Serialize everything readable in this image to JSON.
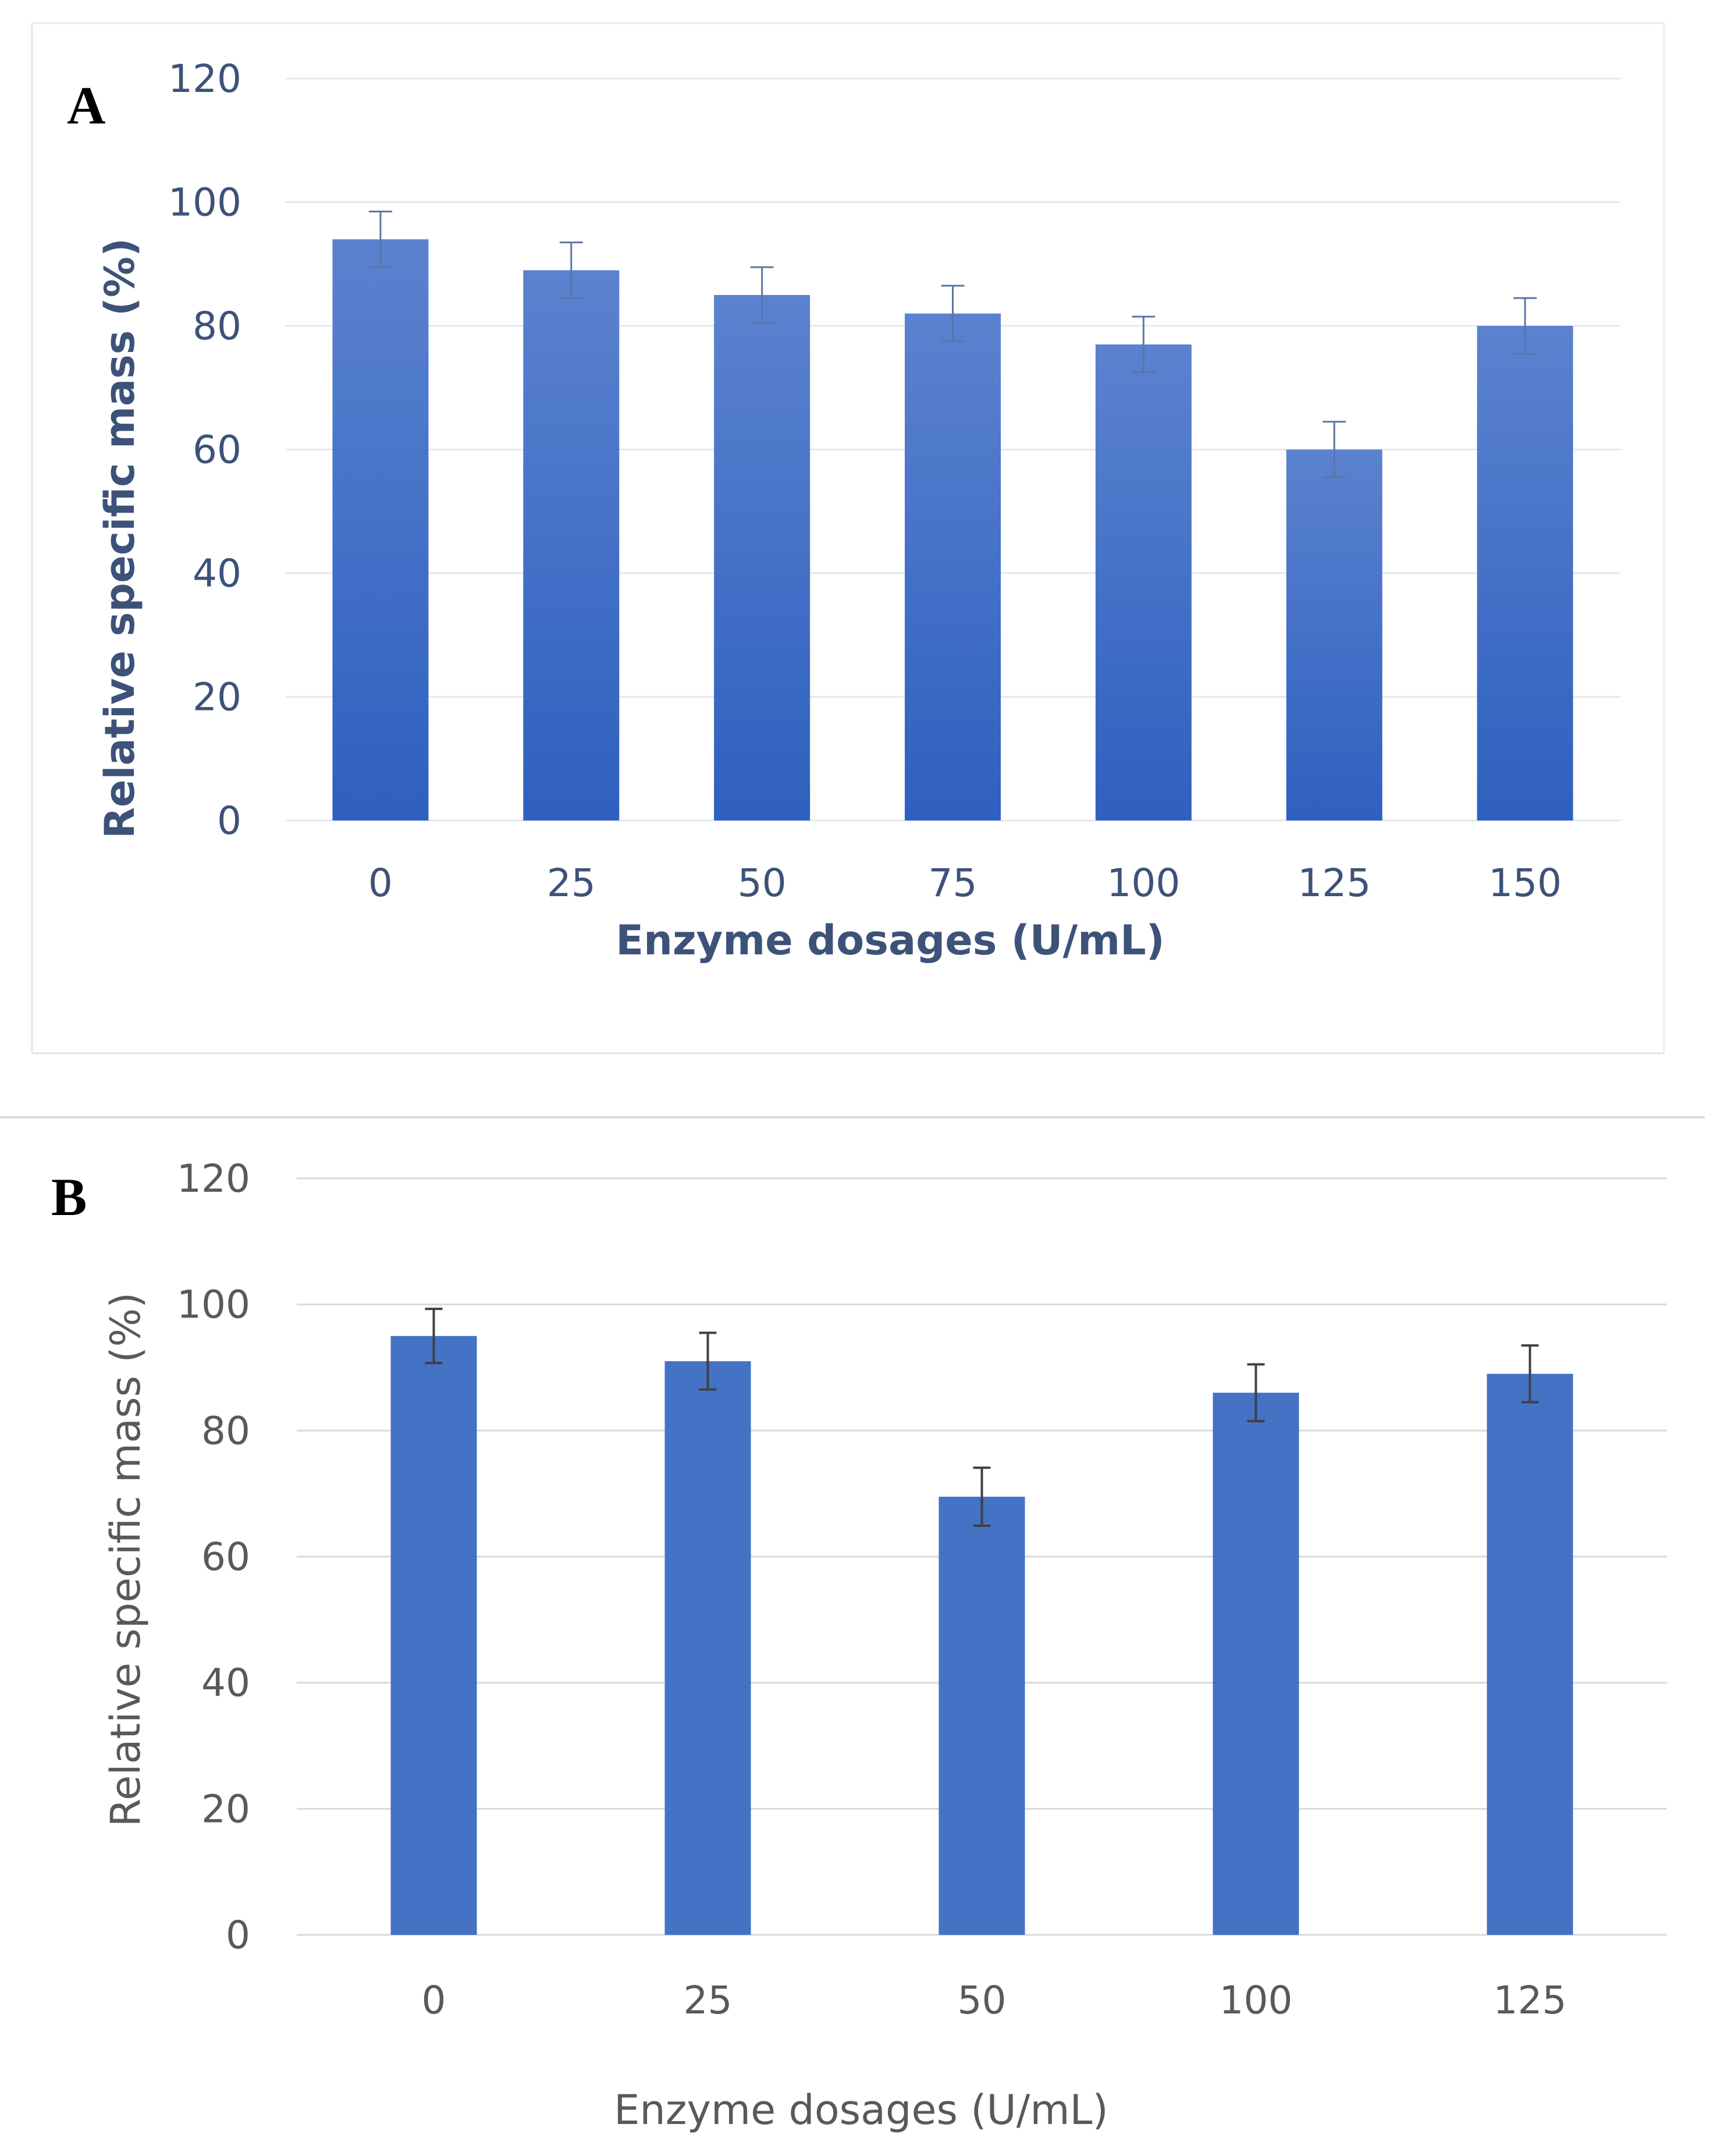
{
  "chart_data": [
    {
      "panel": "A",
      "type": "bar",
      "categories": [
        "0",
        "25",
        "50",
        "75",
        "100",
        "125",
        "150"
      ],
      "series": [
        {
          "values": [
            94,
            89,
            85,
            82,
            77,
            60,
            80
          ],
          "errors": [
            4.5,
            4.5,
            4.5,
            4.5,
            4.5,
            4.5,
            4.5
          ]
        }
      ],
      "xlabel": "Enzyme dosages (U/mL)",
      "ylabel": "Relative specific mass (%)",
      "ylim": [
        0,
        120
      ],
      "yticks": [
        "0",
        "20",
        "40",
        "60",
        "80",
        "100",
        "120"
      ],
      "grid": true,
      "bar_color": "#3a6cc6",
      "error_color": "#5a76a8",
      "text_color": "#3d5278"
    },
    {
      "panel": "B",
      "type": "bar",
      "categories": [
        "0",
        "25",
        "50",
        "100",
        "125"
      ],
      "series": [
        {
          "values": [
            95,
            91,
            69.5,
            86,
            89
          ],
          "errors": [
            4.3,
            4.5,
            4.6,
            4.5,
            4.5
          ]
        }
      ],
      "xlabel": "Enzyme dosages (U/mL)",
      "ylabel": "Relative specific mass (%)",
      "ylim": [
        0,
        120
      ],
      "yticks": [
        "0",
        "20",
        "40",
        "60",
        "80",
        "100",
        "120"
      ],
      "grid": true,
      "bar_color": "#4472c4",
      "error_color": "#404040",
      "text_color": "#595959"
    }
  ]
}
